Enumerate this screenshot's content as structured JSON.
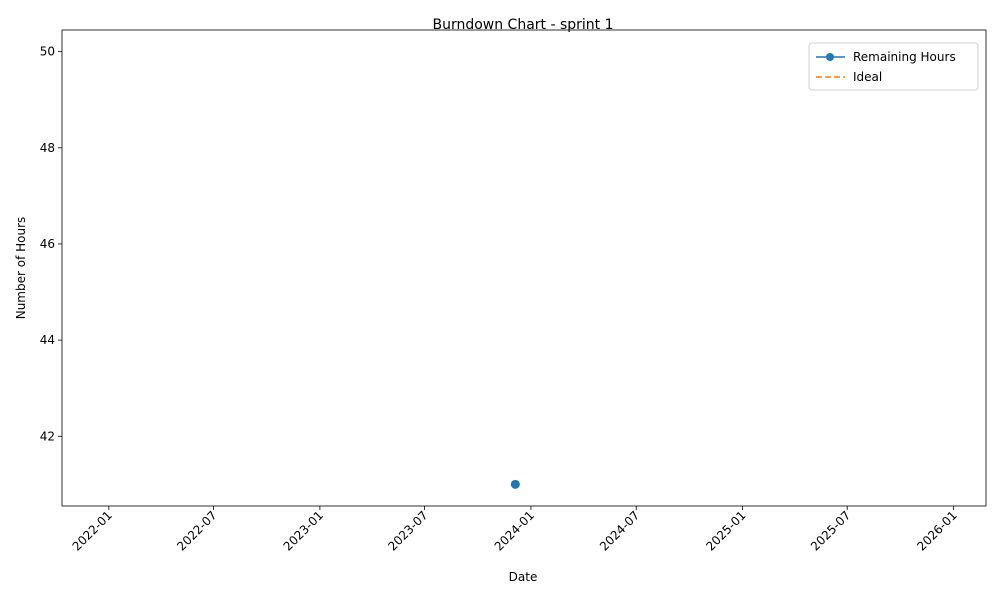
{
  "chart_data": {
    "type": "line",
    "title": "Burndown Chart - sprint 1",
    "xlabel": "Date",
    "ylabel": "Number of Hours",
    "x_ticks": [
      "2022-01",
      "2022-07",
      "2023-01",
      "2023-07",
      "2024-01",
      "2024-07",
      "2025-01",
      "2025-07",
      "2026-01"
    ],
    "y_ticks": [
      42,
      44,
      46,
      48,
      50
    ],
    "series": [
      {
        "name": "Remaining Hours",
        "color": "#1f77b4",
        "style": "solid",
        "marker": "circle",
        "points": [
          {
            "x": "2023-12-05",
            "y": 41
          }
        ]
      },
      {
        "name": "Ideal",
        "color": "#ff7f0e",
        "style": "dashed",
        "marker": "none",
        "points": []
      }
    ],
    "xlim": [
      "2021-10-12",
      "2026-02-26"
    ],
    "ylim": [
      40.55,
      50.45
    ],
    "grid": false,
    "legend_position": "top-right"
  }
}
